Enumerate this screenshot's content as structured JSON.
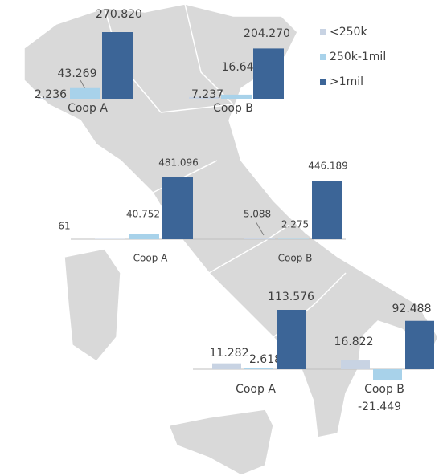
{
  "chart_data": [
    {
      "type": "bar",
      "categories": [
        "Coop A",
        "Coop B"
      ],
      "series": [
        {
          "name": "<250k",
          "color": "#c8d3e3",
          "values": [
            2236,
            7237
          ],
          "value_labels": [
            "2.236",
            "7.237"
          ]
        },
        {
          "name": "250k-1mil",
          "color": "#a8d2ea",
          "values": [
            43269,
            16647
          ],
          "value_labels": [
            "43.269",
            "16.647"
          ]
        },
        {
          "name": ">1mil",
          "color": "#3c6597",
          "values": [
            270820,
            204270
          ],
          "value_labels": [
            "270.820",
            "204.270"
          ]
        }
      ]
    },
    {
      "type": "bar",
      "categories": [
        "Coop A",
        "Coop B"
      ],
      "series": [
        {
          "values": [
            61,
            5088
          ],
          "value_labels": [
            "61",
            "5.088"
          ]
        },
        {
          "values": [
            40752,
            2275
          ],
          "value_labels": [
            "40.752",
            "2.275"
          ]
        },
        {
          "values": [
            481096,
            446189
          ],
          "value_labels": [
            "481.096",
            "446.189"
          ]
        }
      ]
    },
    {
      "type": "bar",
      "categories": [
        "Coop A",
        "Coop B"
      ],
      "series": [
        {
          "values": [
            11282,
            16822
          ],
          "value_labels": [
            "11.282",
            "16.822"
          ]
        },
        {
          "values": [
            2618,
            -21449
          ],
          "value_labels": [
            "2.618",
            "-21.449"
          ]
        },
        {
          "values": [
            113576,
            92488
          ],
          "value_labels": [
            "113.576",
            "92.488"
          ]
        }
      ]
    }
  ]
}
